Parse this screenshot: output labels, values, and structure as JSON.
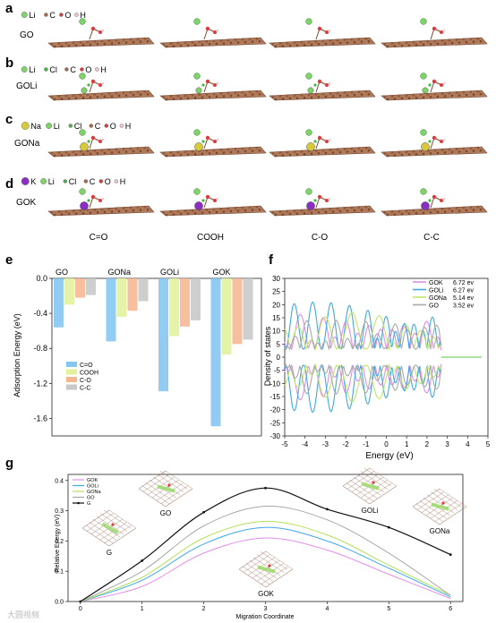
{
  "panels": {
    "a": {
      "letter": "a",
      "row_label": "GO",
      "legend": [
        "Li",
        "C",
        "O",
        "H"
      ]
    },
    "b": {
      "letter": "b",
      "row_label": "GOLi",
      "legend": [
        "Li",
        "Cl",
        "C",
        "O",
        "H"
      ]
    },
    "c": {
      "letter": "c",
      "row_label": "GONa",
      "legend": [
        "Na",
        "Li",
        "Cl",
        "C",
        "O",
        "H"
      ]
    },
    "d": {
      "letter": "d",
      "row_label": "GOK",
      "legend": [
        "K",
        "Li",
        "Cl",
        "C",
        "O",
        "H"
      ]
    },
    "columns": [
      "C=O",
      "COOH",
      "C-O",
      "C-C"
    ]
  },
  "legend_colors": {
    "Li": "#7ed36b",
    "C": "#a66a4a",
    "O": "#e03a3a",
    "H": "#f2c9c9",
    "Cl": "#49b649",
    "Na": "#d8c93a",
    "K": "#8a2fc4"
  },
  "chart_e": {
    "letter": "e",
    "type": "bar",
    "groups": [
      "GO",
      "GONa",
      "GOLi",
      "GOK"
    ],
    "series": [
      {
        "name": "C=O",
        "values": [
          -0.56,
          -0.72,
          -1.29,
          -1.69
        ],
        "color": "#86c7f2"
      },
      {
        "name": "COOH",
        "values": [
          -0.3,
          -0.44,
          -0.66,
          -0.87
        ],
        "color": "#e1f29b"
      },
      {
        "name": "C-O",
        "values": [
          -0.22,
          -0.37,
          -0.55,
          -0.75
        ],
        "color": "#f6b892"
      },
      {
        "name": "C-C",
        "values": [
          -0.19,
          -0.26,
          -0.48,
          -0.7
        ],
        "color": "#c9c9c9"
      }
    ],
    "ylabel": "Adsorption Energy (eV)",
    "ylim": [
      -1.8,
      0.0
    ],
    "yticks": [
      "0.0",
      "-0.4",
      "-0.8",
      "-1.2",
      "-1.6"
    ]
  },
  "chart_f": {
    "letter": "f",
    "type": "line",
    "xlabel": "Energy (eV)",
    "ylabel": "Density of states",
    "xlim": [
      -5,
      5
    ],
    "ylim": [
      -30,
      30
    ],
    "xticks": [
      "-5",
      "-4",
      "-3",
      "-2",
      "-1",
      "0",
      "1",
      "2",
      "3",
      "4",
      "5"
    ],
    "yticks": [
      "30",
      "25",
      "20",
      "15",
      "10",
      "5",
      "0",
      "-5",
      "-10",
      "-15",
      "-20",
      "-25",
      "-30"
    ],
    "series": [
      {
        "name": "GOK",
        "value": "6.72 ev",
        "color": "#e08ee8"
      },
      {
        "name": "GOLi",
        "value": "6.27 ev",
        "color": "#3ea8e8"
      },
      {
        "name": "GONa",
        "value": "5.14 ev",
        "color": "#bfe86a"
      },
      {
        "name": "GO",
        "value": "3.52 ev",
        "color": "#a8a8a8"
      }
    ]
  },
  "chart_g": {
    "letter": "g",
    "type": "line",
    "xlabel": "Migration Coordinate",
    "ylabel": "Relative Energy (eV)",
    "xlim": [
      -0.2,
      6.2
    ],
    "ylim": [
      0.0,
      0.42
    ],
    "xticks": [
      "0",
      "1",
      "2",
      "3",
      "4",
      "5",
      "6"
    ],
    "yticks": [
      "0.0",
      "0.1",
      "0.2",
      "0.3",
      "0.4"
    ],
    "series": [
      {
        "name": "GOK",
        "color": "#e08ee8",
        "x": [
          0,
          1,
          2,
          3,
          4,
          5,
          6
        ],
        "y": [
          0.0,
          0.05,
          0.16,
          0.21,
          0.17,
          0.09,
          0.01
        ]
      },
      {
        "name": "GOLi",
        "color": "#3ea8e8",
        "x": [
          0,
          1,
          2,
          3,
          4,
          5,
          6
        ],
        "y": [
          0.0,
          0.07,
          0.19,
          0.245,
          0.2,
          0.11,
          0.015
        ]
      },
      {
        "name": "GONa",
        "color": "#b2e05a",
        "x": [
          0,
          1,
          2,
          3,
          4,
          5,
          6
        ],
        "y": [
          0.0,
          0.08,
          0.21,
          0.265,
          0.22,
          0.12,
          0.02
        ]
      },
      {
        "name": "GO",
        "color": "#a8a8a8",
        "x": [
          0,
          1,
          2,
          3,
          4,
          5,
          6
        ],
        "y": [
          0.0,
          0.1,
          0.25,
          0.315,
          0.27,
          0.16,
          0.02
        ]
      },
      {
        "name": "G",
        "color": "#111111",
        "x": [
          0,
          1,
          2,
          3,
          4,
          5,
          6
        ],
        "y": [
          0.0,
          0.135,
          0.295,
          0.375,
          0.305,
          0.245,
          0.155
        ]
      }
    ],
    "structures": [
      "G",
      "GO",
      "GOK",
      "GOLi",
      "GONa"
    ]
  },
  "watermark": "大圆视频"
}
